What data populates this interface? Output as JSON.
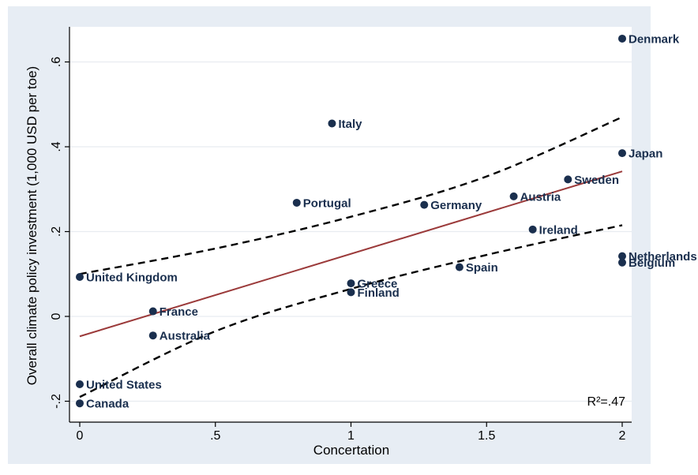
{
  "chart_data": {
    "type": "scatter",
    "xlabel": "Concertation",
    "ylabel": "Overall climate policy investment (1,000 USD per toe)",
    "xlim": [
      0,
      2
    ],
    "ylim": [
      -0.2,
      0.65
    ],
    "x_ticks": [
      {
        "value": 0,
        "label": "0"
      },
      {
        "value": 0.5,
        "label": ".5"
      },
      {
        "value": 1,
        "label": "1"
      },
      {
        "value": 1.5,
        "label": "1.5"
      },
      {
        "value": 2,
        "label": "2"
      }
    ],
    "y_ticks": [
      {
        "value": -0.2,
        "label": "-.2"
      },
      {
        "value": 0,
        "label": "0"
      },
      {
        "value": 0.2,
        "label": ".2"
      },
      {
        "value": 0.4,
        "label": ".4"
      },
      {
        "value": 0.6,
        "label": ".6"
      }
    ],
    "points": [
      {
        "label": "Denmark",
        "x": 2.0,
        "y": 0.655
      },
      {
        "label": "Italy",
        "x": 0.93,
        "y": 0.455
      },
      {
        "label": "Japan",
        "x": 2.0,
        "y": 0.385
      },
      {
        "label": "Sweden",
        "x": 1.8,
        "y": 0.323
      },
      {
        "label": "Austria",
        "x": 1.6,
        "y": 0.283
      },
      {
        "label": "Portugal",
        "x": 0.8,
        "y": 0.268
      },
      {
        "label": "Germany",
        "x": 1.27,
        "y": 0.263
      },
      {
        "label": "Ireland",
        "x": 1.67,
        "y": 0.205
      },
      {
        "label": "Netherlands",
        "x": 2.0,
        "y": 0.142
      },
      {
        "label": "Belgium",
        "x": 2.0,
        "y": 0.127
      },
      {
        "label": "Spain",
        "x": 1.4,
        "y": 0.116
      },
      {
        "label": "United Kingdom",
        "x": 0.0,
        "y": 0.093
      },
      {
        "label": "Greece",
        "x": 1.0,
        "y": 0.078
      },
      {
        "label": "Finland",
        "x": 1.0,
        "y": 0.057
      },
      {
        "label": "France",
        "x": 0.27,
        "y": 0.012
      },
      {
        "label": "Australia",
        "x": 0.27,
        "y": -0.045
      },
      {
        "label": "United States",
        "x": 0.0,
        "y": -0.16
      },
      {
        "label": "Canada",
        "x": 0.0,
        "y": -0.205
      }
    ],
    "fit_line": {
      "x": [
        0,
        2
      ],
      "y": [
        -0.047,
        0.342
      ],
      "color": "#9b3a3a"
    },
    "ci_upper": {
      "x": [
        0,
        0.5,
        1,
        1.5,
        2
      ],
      "y": [
        0.1,
        0.16,
        0.235,
        0.33,
        0.47
      ]
    },
    "ci_lower": {
      "x": [
        0,
        0.5,
        1,
        1.5,
        2
      ],
      "y": [
        -0.19,
        -0.035,
        0.065,
        0.145,
        0.215
      ]
    },
    "annotation": "R²=.47",
    "grid": true,
    "colors": {
      "point": "#1a2f4e",
      "fit": "#9b3a3a",
      "ci": "#000000",
      "outer_bg": "#e7edf4",
      "plot_bg": "#ffffff",
      "grid": "#e8ecf0"
    }
  }
}
